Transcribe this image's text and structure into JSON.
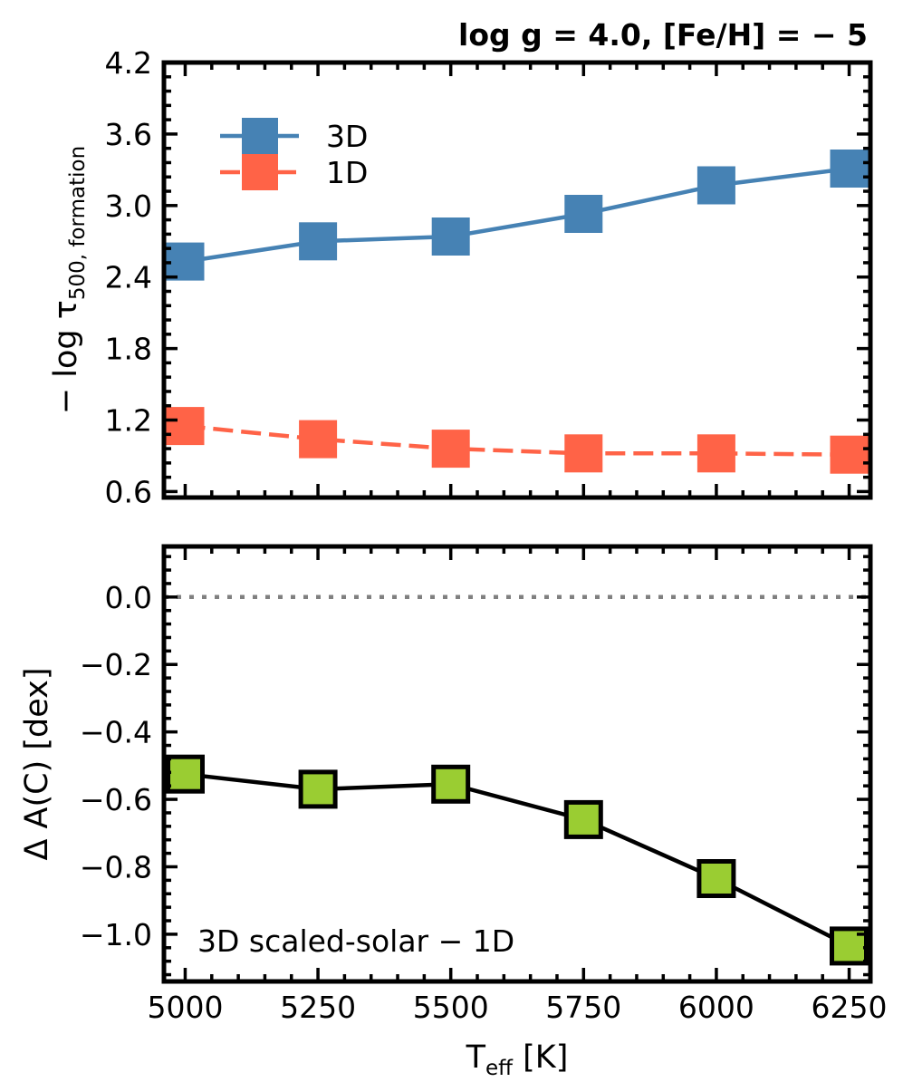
{
  "chart_data": [
    {
      "type": "line",
      "title": "log g = 4.0, [Fe/H] = − 5",
      "ylabel_prefix": "− log τ",
      "ylabel_sub": "500, formation",
      "x": [
        5000,
        5250,
        5500,
        5750,
        6000,
        6250
      ],
      "xlim": [
        4960,
        6290
      ],
      "ylim": [
        0.55,
        4.2
      ],
      "yticks": [
        "0.6",
        "1.2",
        "1.8",
        "2.4",
        "3.0",
        "3.6",
        "4.2"
      ],
      "series": [
        {
          "name": "3D",
          "color": "#4682B4",
          "style": "solid",
          "values": [
            2.53,
            2.7,
            2.74,
            2.93,
            3.17,
            3.31
          ]
        },
        {
          "name": "1D",
          "color": "#FF6347",
          "style": "dashed",
          "values": [
            1.15,
            1.04,
            0.96,
            0.92,
            0.92,
            0.91
          ]
        }
      ],
      "legend_position": "upper-left"
    },
    {
      "type": "line",
      "ylabel": "Δ A(C) [dex]",
      "xlabel_main": "T",
      "xlabel_sub": "eff",
      "xlabel_suffix": " [K]",
      "x": [
        5000,
        5250,
        5500,
        5750,
        6000,
        6250
      ],
      "xticks": [
        "5000",
        "5250",
        "5500",
        "5750",
        "6000",
        "6250"
      ],
      "xlim": [
        4960,
        6290
      ],
      "ylim": [
        -1.14,
        0.15
      ],
      "yticks": [
        "0.0",
        "−0.2",
        "−0.4",
        "−0.6",
        "−0.8",
        "−1.0"
      ],
      "reference_line": 0.0,
      "series": [
        {
          "name": "3D scaled-solar − 1D",
          "color": "#9ACD32",
          "values": [
            -0.525,
            -0.57,
            -0.555,
            -0.66,
            -0.835,
            -1.035
          ]
        }
      ],
      "annotation": "3D scaled-solar − 1D"
    }
  ]
}
